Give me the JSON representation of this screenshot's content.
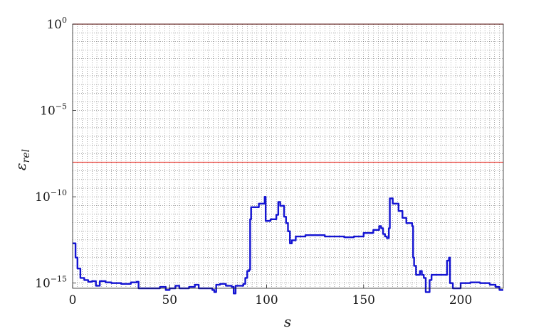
{
  "chart_data": {
    "type": "line",
    "title": "",
    "xlabel": "s",
    "ylabel": "ε",
    "ylabel_sub": "rel",
    "xlim": [
      0,
      222
    ],
    "ylim_exp": [
      -15.3,
      0
    ],
    "yscale": "log",
    "grid": "minor-dotted",
    "x_ticks": [
      {
        "value": 0,
        "label": "0"
      },
      {
        "value": 50,
        "label": "50"
      },
      {
        "value": 100,
        "label": "100"
      },
      {
        "value": 150,
        "label": "150"
      },
      {
        "value": 200,
        "label": "200"
      }
    ],
    "y_ticks": [
      {
        "exp": 0,
        "base": "10",
        "sup": "0"
      },
      {
        "exp": -5,
        "base": "10",
        "sup": "−5"
      },
      {
        "exp": -10,
        "base": "10",
        "sup": "−10"
      },
      {
        "exp": -15,
        "base": "10",
        "sup": "−15"
      }
    ],
    "reference_lines": [
      {
        "y": 1,
        "color": "#e8413a"
      },
      {
        "y": 1e-08,
        "color": "#e8413a"
      }
    ],
    "series": [
      {
        "color": "#1414d2",
        "points": [
          [
            0,
            2e-13
          ],
          [
            1,
            2e-13
          ],
          [
            1.5,
            3e-14
          ],
          [
            2,
            3e-14
          ],
          [
            2.5,
            7e-15
          ],
          [
            3,
            7e-15
          ],
          [
            4,
            2e-15
          ],
          [
            6,
            1.5e-15
          ],
          [
            8,
            1.2e-15
          ],
          [
            10,
            1.3e-15
          ],
          [
            12,
            7e-16
          ],
          [
            13,
            7e-16
          ],
          [
            14,
            1.3e-15
          ],
          [
            17,
            1.1e-15
          ],
          [
            20,
            1e-15
          ],
          [
            25,
            9e-16
          ],
          [
            30,
            1.1e-15
          ],
          [
            33,
            1.2e-15
          ],
          [
            34,
            5e-16
          ],
          [
            40,
            5e-16
          ],
          [
            45,
            6e-16
          ],
          [
            48,
            4e-16
          ],
          [
            50,
            5e-16
          ],
          [
            53,
            7e-16
          ],
          [
            55,
            5e-16
          ],
          [
            60,
            6e-16
          ],
          [
            63,
            8e-16
          ],
          [
            65,
            5e-16
          ],
          [
            70,
            5e-16
          ],
          [
            72,
            4e-16
          ],
          [
            73,
            3e-16
          ],
          [
            74,
            8e-16
          ],
          [
            76,
            9e-16
          ],
          [
            79,
            7e-16
          ],
          [
            82,
            6e-16
          ],
          [
            83,
            2.5e-16
          ],
          [
            84,
            7e-16
          ],
          [
            88,
            9e-16
          ],
          [
            89,
            2e-15
          ],
          [
            90,
            5e-15
          ],
          [
            91,
            6e-15
          ],
          [
            91.5,
            5e-12
          ],
          [
            92,
            2.5e-11
          ],
          [
            96,
            4e-11
          ],
          [
            99,
            1e-10
          ],
          [
            99.5,
            4e-12
          ],
          [
            102,
            5e-12
          ],
          [
            105,
            9e-12
          ],
          [
            106,
            5e-11
          ],
          [
            107,
            3e-11
          ],
          [
            109,
            7e-12
          ],
          [
            110,
            3e-12
          ],
          [
            111,
            1e-12
          ],
          [
            112,
            2e-13
          ],
          [
            113,
            3e-13
          ],
          [
            115,
            5e-13
          ],
          [
            120,
            6e-13
          ],
          [
            130,
            5e-13
          ],
          [
            140,
            4.5e-13
          ],
          [
            145,
            5e-13
          ],
          [
            150,
            8e-13
          ],
          [
            155,
            1.2e-12
          ],
          [
            158,
            2e-12
          ],
          [
            159,
            1.5e-12
          ],
          [
            160,
            7e-13
          ],
          [
            161,
            5e-13
          ],
          [
            162,
            4e-13
          ],
          [
            163,
            1.5e-12
          ],
          [
            163.5,
            8e-11
          ],
          [
            165,
            4e-11
          ],
          [
            168,
            1.5e-11
          ],
          [
            170,
            6e-12
          ],
          [
            172,
            3e-12
          ],
          [
            175,
            2e-12
          ],
          [
            175.5,
            3e-14
          ],
          [
            176,
            1e-14
          ],
          [
            177,
            3e-15
          ],
          [
            178,
            3e-15
          ],
          [
            179,
            5e-15
          ],
          [
            180,
            3e-15
          ],
          [
            181,
            2e-15
          ],
          [
            182,
            3e-16
          ],
          [
            183,
            3e-16
          ],
          [
            184,
            1.5e-15
          ],
          [
            185,
            3e-15
          ],
          [
            188,
            3e-15
          ],
          [
            190,
            3e-15
          ],
          [
            192,
            3e-15
          ],
          [
            193,
            2e-14
          ],
          [
            194,
            3e-14
          ],
          [
            194.5,
            1e-15
          ],
          [
            196,
            5e-16
          ],
          [
            200,
            1e-15
          ],
          [
            205,
            1.1e-15
          ],
          [
            210,
            1e-15
          ],
          [
            215,
            8e-16
          ],
          [
            218,
            6e-16
          ],
          [
            220,
            4e-16
          ],
          [
            222,
            4e-16
          ]
        ]
      }
    ]
  }
}
